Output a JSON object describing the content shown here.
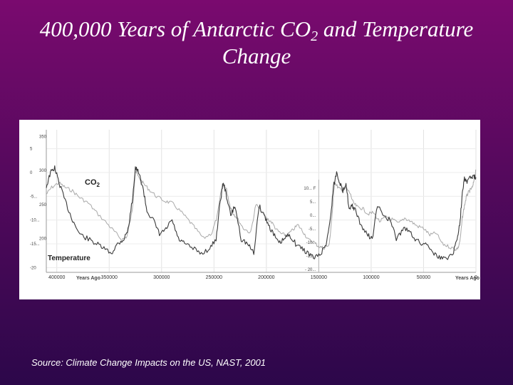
{
  "title": {
    "line1_pre": "400,000 Years of Antarctic CO",
    "line1_sub": "2",
    "line1_post": " and Temperature",
    "line2": "Change"
  },
  "source": "Source: Climate Change Impacts on the US, NAST, 2001",
  "colors": {
    "co2_line": "#a9a9a9",
    "temp_line": "#3a3a3a",
    "background_top": "#7a0a6f",
    "background_bottom": "#2c074a"
  },
  "chart_data": {
    "type": "line",
    "x_label_left": "Years Ago",
    "x_label_right": "Years Ago",
    "x_ticks": [
      "400000",
      "350000",
      "300000",
      "250000",
      "200000",
      "150000",
      "100000",
      "50000",
      "0"
    ],
    "x_tick_values": [
      400000,
      350000,
      300000,
      250000,
      200000,
      150000,
      100000,
      50000,
      0
    ],
    "xlim": [
      410000,
      0
    ],
    "co2_axis": {
      "ticks": [
        "350",
        "300",
        "250",
        "200"
      ],
      "tick_values": [
        350,
        300,
        250,
        200
      ],
      "ylim": [
        150,
        360
      ]
    },
    "temp_axis_left": {
      "ticks": [
        "5",
        "0",
        "-5...",
        "-10...",
        "-15...",
        "-20"
      ],
      "tick_values": [
        5,
        0,
        -5,
        -10,
        -15,
        -20
      ],
      "ylim": [
        -21,
        9
      ]
    },
    "temp_axis_mid": {
      "ticks": [
        "10... F",
        "5...",
        "0...",
        "-5...",
        "-10...",
        "-15...",
        "- 20..."
      ],
      "tick_values": [
        10,
        5,
        0,
        -5,
        -10,
        -15,
        -20
      ]
    },
    "series": [
      {
        "name": "CO2",
        "axis": "co2",
        "x": [
          410000,
          405000,
          398000,
          392000,
          385000,
          378000,
          370000,
          362000,
          352000,
          345000,
          338000,
          333000,
          328000,
          325000,
          322000,
          318000,
          312000,
          305000,
          297000,
          290000,
          282000,
          275000,
          268000,
          260000,
          252000,
          247000,
          242000,
          238000,
          235000,
          232000,
          228000,
          222000,
          215000,
          210000,
          205000,
          200000,
          195000,
          190000,
          185000,
          180000,
          175000,
          170000,
          165000,
          160000,
          155000,
          150000,
          145000,
          140000,
          137000,
          135000,
          132000,
          128000,
          124000,
          120000,
          117000,
          113000,
          108000,
          103000,
          98000,
          92000,
          86000,
          80000,
          74000,
          68000,
          62000,
          56000,
          50000,
          44000,
          38000,
          32000,
          26000,
          20000,
          17000,
          15000,
          13000,
          11000,
          9000,
          7000,
          5000,
          3000,
          1500,
          0
        ],
        "values": [
          265,
          275,
          282,
          275,
          270,
          260,
          252,
          238,
          222,
          210,
          198,
          203,
          240,
          300,
          290,
          282,
          272,
          262,
          255,
          252,
          240,
          228,
          215,
          200,
          208,
          232,
          280,
          272,
          250,
          238,
          230,
          215,
          208,
          250,
          240,
          230,
          224,
          212,
          206,
          205,
          212,
          220,
          210,
          198,
          195,
          188,
          186,
          190,
          240,
          283,
          276,
          270,
          274,
          266,
          252,
          246,
          244,
          236,
          238,
          225,
          231,
          228,
          222,
          230,
          225,
          218,
          215,
          205,
          208,
          192,
          188,
          184,
          186,
          198,
          230,
          248,
          262,
          268,
          272,
          276,
          290,
          300
        ]
      },
      {
        "name": "Temperature",
        "axis": "temp",
        "x": [
          410000,
          406000,
          402000,
          398000,
          392000,
          385000,
          378000,
          370000,
          362000,
          355000,
          348000,
          342000,
          336000,
          332000,
          328000,
          325000,
          322000,
          318000,
          314000,
          308000,
          302000,
          296000,
          290000,
          284000,
          278000,
          270000,
          262000,
          254000,
          248000,
          244000,
          241000,
          238000,
          234000,
          230000,
          224000,
          218000,
          212000,
          207000,
          202000,
          198000,
          193000,
          188000,
          183000,
          178000,
          172000,
          166000,
          160000,
          154000,
          148000,
          143000,
          139000,
          136000,
          133000,
          130000,
          127000,
          124000,
          121000,
          118000,
          115000,
          110000,
          104000,
          99000,
          94000,
          88000,
          82000,
          76000,
          70000,
          64000,
          58000,
          52000,
          46000,
          40000,
          34000,
          28000,
          22000,
          18000,
          15000,
          13000,
          11000,
          9000,
          6000,
          3000,
          0
        ],
        "values": [
          -3,
          0,
          1,
          -2,
          -6,
          -10,
          -13,
          -14,
          -15,
          -16,
          -17,
          -15,
          -14,
          -12,
          -6,
          1,
          0,
          -3,
          -8,
          -10,
          -13,
          -12,
          -10,
          -14,
          -15,
          -16,
          -17,
          -16,
          -14,
          -6,
          -2,
          -5,
          -9,
          -7,
          -14,
          -15,
          -17,
          -7,
          -9,
          -11,
          -13,
          -15,
          -14,
          -13,
          -15,
          -16,
          -17,
          -18,
          -17,
          -15,
          -10,
          -3,
          0,
          -2,
          -4,
          -2,
          -8,
          -7,
          -8,
          -11,
          -13,
          -14,
          -7,
          -9,
          -10,
          -14,
          -12,
          -12,
          -14,
          -15,
          -15,
          -17,
          -18,
          -18,
          -17,
          -14,
          -10,
          -4,
          -1,
          -2,
          -1,
          -1,
          -1
        ]
      }
    ],
    "series_labels": {
      "co2_main": "CO",
      "co2_sub": "2",
      "temperature": "Temperature"
    }
  }
}
